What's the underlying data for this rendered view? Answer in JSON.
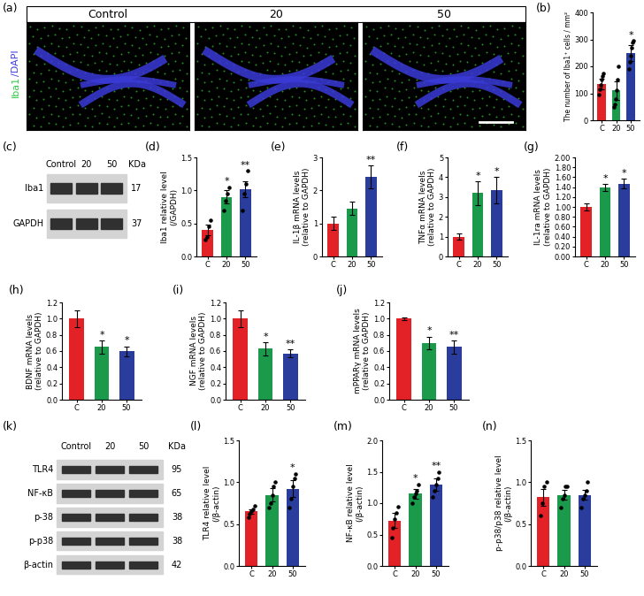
{
  "images": {
    "title": "(a)",
    "conditions": [
      "Control",
      "20",
      "50"
    ],
    "stain_labels": [
      {
        "text": "Iba1",
        "color": "#2ecc40"
      },
      {
        "text": "/DAPI",
        "color": "#4040e0"
      }
    ]
  },
  "blots": [
    {
      "title": "(c)",
      "lanes": [
        "Control",
        "20",
        "50"
      ],
      "unit": "KDa",
      "rows": [
        {
          "name": "Iba1",
          "kda": 17
        },
        {
          "name": "GAPDH",
          "kda": 37
        }
      ]
    },
    {
      "title": "(k)",
      "lanes": [
        "Control",
        "20",
        "50"
      ],
      "unit": "KDa",
      "rows": [
        {
          "name": "TLR4",
          "kda": 95
        },
        {
          "name": "NF-κB",
          "kda": 65
        },
        {
          "name": "p-38",
          "kda": 38
        },
        {
          "name": "p-p38",
          "kda": 38
        },
        {
          "name": "β-actin",
          "kda": 42
        }
      ]
    }
  ],
  "chart_data": [
    {
      "type": "bar",
      "title": "(b)",
      "y_label": "The number of Iba1⁺ cells / mm²",
      "categories": [
        "C",
        "20",
        "50"
      ],
      "values": [
        135,
        110,
        250
      ],
      "errors": [
        20,
        35,
        30
      ],
      "points": [
        [
          95,
          115,
          130,
          150,
          165,
          175
        ],
        [
          50,
          60,
          80,
          110,
          150,
          200
        ],
        [
          190,
          215,
          240,
          270,
          290,
          295
        ]
      ],
      "significance": [
        null,
        null,
        "*"
      ],
      "colors": [
        "#e32227",
        "#1b9a4c",
        "#2b3d9c"
      ],
      "ylim": [
        0,
        400
      ],
      "yticks": [
        0,
        100,
        200,
        300,
        400
      ]
    },
    {
      "type": "bar",
      "title": "(d)",
      "y_label": "Iba1 relative level\n(/GAPDH)",
      "categories": [
        "C",
        "20",
        "50"
      ],
      "values": [
        0.4,
        0.9,
        1.02
      ],
      "errors": [
        0.08,
        0.1,
        0.12
      ],
      "points": [
        [
          0.25,
          0.3,
          0.45,
          0.55
        ],
        [
          0.7,
          0.85,
          0.95,
          1.05
        ],
        [
          0.7,
          0.95,
          1.1,
          1.3
        ]
      ],
      "significance": [
        null,
        "*",
        "**"
      ],
      "colors": [
        "#e32227",
        "#1b9a4c",
        "#2b3d9c"
      ],
      "ylim": [
        0.0,
        1.5
      ],
      "yticks": [
        0.0,
        0.5,
        1.0,
        1.5
      ]
    },
    {
      "type": "bar",
      "title": "(e)",
      "y_label": "IL-1β mRNA levels\n(relative to GAPDH)",
      "categories": [
        "C",
        "20",
        "50"
      ],
      "values": [
        1.0,
        1.45,
        2.4
      ],
      "errors": [
        0.2,
        0.2,
        0.35
      ],
      "significance": [
        null,
        null,
        "**"
      ],
      "colors": [
        "#e32227",
        "#1b9a4c",
        "#2b3d9c"
      ],
      "ylim": [
        0,
        3
      ],
      "yticks": [
        0,
        1,
        2,
        3
      ]
    },
    {
      "type": "bar",
      "title": "(f)",
      "y_label": "TNFα mRNA levels\n(relative to GAPDH)",
      "categories": [
        "C",
        "20",
        "50"
      ],
      "values": [
        1.0,
        3.2,
        3.35
      ],
      "errors": [
        0.15,
        0.6,
        0.65
      ],
      "significance": [
        null,
        "*",
        "*"
      ],
      "colors": [
        "#e32227",
        "#1b9a4c",
        "#2b3d9c"
      ],
      "ylim": [
        0,
        5
      ],
      "yticks": [
        0,
        1,
        2,
        3,
        4,
        5
      ]
    },
    {
      "type": "bar",
      "title": "(g)",
      "y_label": "IL-1ra mRNA levels\n(relative to GAPDH)",
      "categories": [
        "C",
        "20",
        "50"
      ],
      "values": [
        1.0,
        1.4,
        1.47
      ],
      "errors": [
        0.08,
        0.07,
        0.1
      ],
      "significance": [
        null,
        "*",
        "*"
      ],
      "colors": [
        "#e32227",
        "#1b9a4c",
        "#2b3d9c"
      ],
      "ylim": [
        0.0,
        2.0
      ],
      "yticks": [
        {
          "value": 0.0,
          "label": "0.00"
        },
        {
          "value": 0.2,
          "label": "0.20"
        },
        {
          "value": 0.4,
          "label": "0.40"
        },
        {
          "value": 0.6,
          "label": "0.60"
        },
        {
          "value": 0.8,
          "label": "0.80"
        },
        {
          "value": 1.0,
          "label": "1.00"
        },
        {
          "value": 1.2,
          "label": "1.20"
        },
        {
          "value": 1.4,
          "label": "1.40"
        },
        {
          "value": 1.6,
          "label": "1.60"
        },
        {
          "value": 1.8,
          "label": "1.80"
        },
        {
          "value": 2.0,
          "label": "2.00"
        }
      ]
    },
    {
      "type": "bar",
      "title": "(h)",
      "y_label": "BDNF mRNA levels\n(relative to GAPDH)",
      "categories": [
        "C",
        "20",
        "50"
      ],
      "values": [
        1.0,
        0.65,
        0.6
      ],
      "errors": [
        0.1,
        0.08,
        0.06
      ],
      "significance": [
        null,
        "*",
        "*"
      ],
      "colors": [
        "#e32227",
        "#1b9a4c",
        "#2b3d9c"
      ],
      "ylim": [
        0.0,
        1.2
      ],
      "yticks": [
        0.0,
        0.2,
        0.4,
        0.6,
        0.8,
        1.0,
        1.2
      ]
    },
    {
      "type": "bar",
      "title": "(i)",
      "y_label": "NGF mRNA levels\n(relative to GAPDH)",
      "categories": [
        "C",
        "20",
        "50"
      ],
      "values": [
        1.0,
        0.63,
        0.57
      ],
      "errors": [
        0.1,
        0.08,
        0.05
      ],
      "significance": [
        null,
        "*",
        "**"
      ],
      "colors": [
        "#e32227",
        "#1b9a4c",
        "#2b3d9c"
      ],
      "ylim": [
        0.0,
        1.2
      ],
      "yticks": [
        0.0,
        0.2,
        0.4,
        0.6,
        0.8,
        1.0,
        1.2
      ]
    },
    {
      "type": "bar",
      "title": "(j)",
      "y_label": "mPPARγ mRNA levels\n(relative to GAPDH)",
      "categories": [
        "C",
        "20",
        "50"
      ],
      "values": [
        1.0,
        0.7,
        0.65
      ],
      "errors": [
        0.02,
        0.08,
        0.08
      ],
      "significance": [
        null,
        "*",
        "**"
      ],
      "colors": [
        "#e32227",
        "#1b9a4c",
        "#2b3d9c"
      ],
      "ylim": [
        0.0,
        1.2
      ],
      "yticks": [
        0.0,
        0.2,
        0.4,
        0.6,
        0.8,
        1.0,
        1.2
      ]
    },
    {
      "type": "bar",
      "title": "(l)",
      "y_label": "TLR4 relative level\n(/β-actin)",
      "categories": [
        "C",
        "20",
        "50"
      ],
      "values": [
        0.65,
        0.85,
        0.92
      ],
      "errors": [
        0.03,
        0.08,
        0.1
      ],
      "points": [
        [
          0.58,
          0.62,
          0.65,
          0.68,
          0.72
        ],
        [
          0.7,
          0.75,
          0.85,
          0.95,
          1.0
        ],
        [
          0.7,
          0.8,
          0.95,
          1.05,
          1.1
        ]
      ],
      "significance": [
        null,
        null,
        "*"
      ],
      "colors": [
        "#e32227",
        "#1b9a4c",
        "#2b3d9c"
      ],
      "ylim": [
        0.0,
        1.5
      ],
      "yticks": [
        0.0,
        0.5,
        1.0,
        1.5
      ]
    },
    {
      "type": "bar",
      "title": "(m)",
      "y_label": "NF-κB relative level\n(/β-actin)",
      "categories": [
        "C",
        "20",
        "50"
      ],
      "values": [
        0.72,
        1.15,
        1.3
      ],
      "errors": [
        0.12,
        0.08,
        0.1
      ],
      "points": [
        [
          0.45,
          0.6,
          0.75,
          0.85,
          0.95
        ],
        [
          1.0,
          1.1,
          1.15,
          1.2,
          1.3
        ],
        [
          1.1,
          1.2,
          1.3,
          1.4,
          1.5
        ]
      ],
      "significance": [
        null,
        "*",
        "**"
      ],
      "colors": [
        "#e32227",
        "#1b9a4c",
        "#2b3d9c"
      ],
      "ylim": [
        0.0,
        2.0
      ],
      "yticks": [
        0.0,
        0.5,
        1.0,
        1.5,
        2.0
      ]
    },
    {
      "type": "bar",
      "title": "(n)",
      "y_label": "p-p38/p38 relative level\n(/β-actin)",
      "categories": [
        "C",
        "20",
        "50"
      ],
      "values": [
        0.82,
        0.85,
        0.85
      ],
      "errors": [
        0.1,
        0.06,
        0.06
      ],
      "points": [
        [
          0.6,
          0.75,
          0.95,
          1.0
        ],
        [
          0.7,
          0.8,
          0.85,
          0.95,
          0.95
        ],
        [
          0.7,
          0.8,
          0.85,
          0.9,
          1.0
        ]
      ],
      "significance": [
        null,
        null,
        null
      ],
      "colors": [
        "#e32227",
        "#1b9a4c",
        "#2b3d9c"
      ],
      "ylim": [
        0.0,
        1.5
      ],
      "yticks": [
        0.0,
        0.5,
        1.0,
        1.5
      ]
    }
  ]
}
